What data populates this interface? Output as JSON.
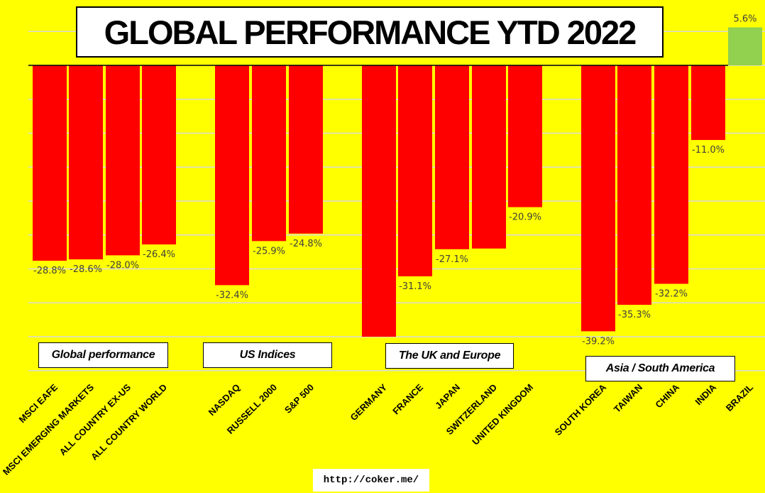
{
  "chart_data": {
    "type": "bar",
    "title": "GLOBAL PERFORMANCE YTD 2022",
    "categories": [
      "MSCI EAFE",
      "MSCI EMERGING MARKETS",
      "ALL COUNTRY EX-US",
      "ALL COUNTRY WORLD",
      "NASDAQ",
      "RUSSELL 2000",
      "S&P 500",
      "GERMANY",
      "FRANCE",
      "JAPAN",
      "SWITZERLAND",
      "UNITED KINGDOM",
      "SOUTH KOREA",
      "TAIWAN",
      "CHINA",
      "INDIA",
      "BRAZIL"
    ],
    "values": [
      -28.8,
      -28.6,
      -28.0,
      -26.4,
      -32.4,
      -25.9,
      -24.8,
      -40.0,
      -31.1,
      -27.1,
      -27.0,
      -20.9,
      -39.2,
      -35.3,
      -32.2,
      -11.0,
      5.6
    ],
    "data_labels": [
      "-28.8%",
      "-28.6%",
      "-28.0%",
      "-26.4%",
      "-32.4%",
      "-25.9%",
      "-24.8%",
      "",
      "-31.1%",
      "-27.1%",
      "",
      "-20.9%",
      "-39.2%",
      "-35.3%",
      "-32.2%",
      "-11.0%",
      "5.6%"
    ],
    "groups": [
      "Global performance",
      "US Indices",
      "The UK and Europe",
      "Asia / South America"
    ],
    "ylim": [
      -45,
      10
    ],
    "grid": true,
    "colors": {
      "negative": "#ff0000",
      "positive": "#92d050",
      "background": "#ffff00",
      "gridline": "#d9d9d9"
    }
  },
  "source": "http://coker.me/"
}
